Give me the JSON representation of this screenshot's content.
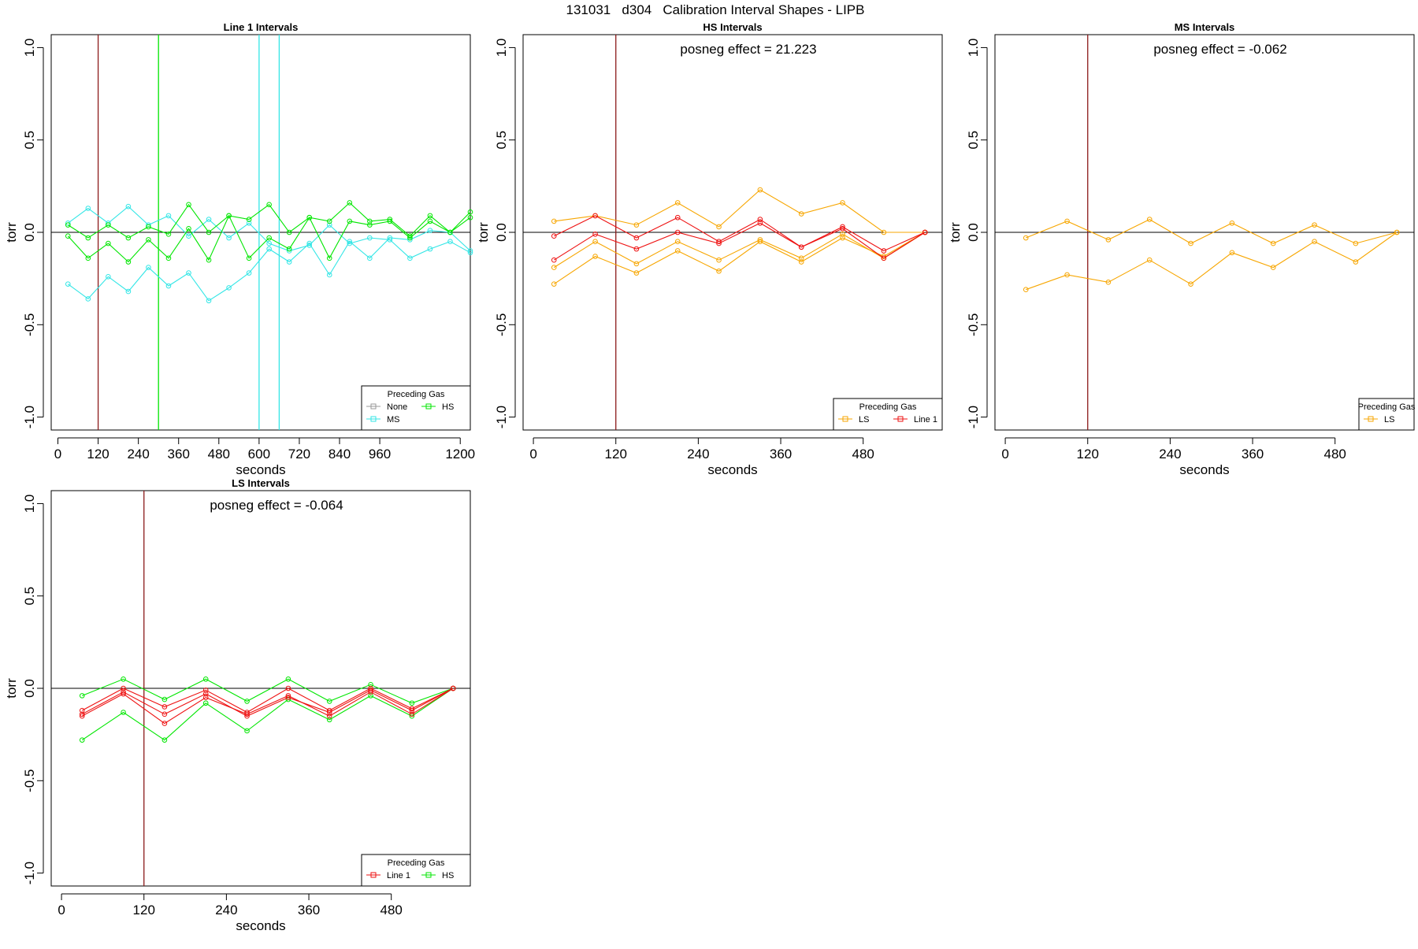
{
  "figure": {
    "title": "131031   d304   Calibration Interval Shapes - LIPB"
  },
  "colors": {
    "None": "#999999",
    "HS": "#00e600",
    "MS": "#33e6e6",
    "LS": "#f7a600",
    "Line 1": "#ee1111",
    "refline": "#8b1a1a",
    "axis": "#000000"
  },
  "chart_data": [
    {
      "type": "line",
      "title": "Line 1 Intervals",
      "xlabel": "seconds",
      "ylabel": "torr",
      "xlim": [
        -20,
        1230
      ],
      "ylim": [
        -1.07,
        1.07
      ],
      "xticks": [
        0,
        120,
        240,
        360,
        480,
        600,
        720,
        840,
        960,
        1200
      ],
      "yticks": [
        -1.0,
        -0.5,
        0.0,
        0.5,
        1.0
      ],
      "annotation": "",
      "hlines": [
        0
      ],
      "vlines": [
        {
          "x": 120,
          "color": "refline"
        },
        {
          "x": 300,
          "color": "HS"
        },
        {
          "x": 600,
          "color": "MS"
        },
        {
          "x": 660,
          "color": "MS"
        }
      ],
      "legend": {
        "title": "Preceding Gas",
        "position": "bottom-right",
        "ncol": 2,
        "entries": [
          "None",
          "HS",
          "MS"
        ]
      },
      "series": [
        {
          "name": "MS",
          "color": "MS",
          "x": [
            30,
            90,
            150,
            210,
            270,
            330,
            390,
            450,
            510,
            570,
            630,
            690,
            750,
            810,
            870,
            930,
            990,
            1050,
            1110,
            1170,
            1230
          ],
          "y": [
            0.05,
            0.13,
            0.05,
            0.14,
            0.04,
            0.09,
            -0.02,
            0.07,
            -0.03,
            0.05,
            -0.06,
            -0.1,
            -0.07,
            0.04,
            -0.06,
            -0.03,
            -0.04,
            -0.14,
            -0.09,
            -0.05,
            -0.11
          ]
        },
        {
          "name": "MS",
          "color": "MS",
          "x": [
            30,
            90,
            150,
            210,
            270,
            330,
            390,
            450,
            510,
            570,
            630,
            690,
            750,
            810,
            870,
            930,
            990,
            1050,
            1110,
            1170,
            1230
          ],
          "y": [
            -0.28,
            -0.36,
            -0.24,
            -0.32,
            -0.19,
            -0.29,
            -0.22,
            -0.37,
            -0.3,
            -0.22,
            -0.09,
            -0.16,
            -0.06,
            -0.23,
            -0.05,
            -0.14,
            -0.03,
            -0.04,
            0.01,
            0.0,
            -0.1
          ]
        },
        {
          "name": "HS",
          "color": "HS",
          "x": [
            30,
            90,
            150,
            210,
            270,
            330,
            390,
            450,
            510,
            570,
            630,
            690,
            750,
            810,
            870,
            930,
            990,
            1050,
            1110,
            1170,
            1230
          ],
          "y": [
            0.04,
            -0.03,
            0.04,
            -0.03,
            0.03,
            -0.01,
            0.15,
            0.0,
            0.09,
            0.07,
            0.15,
            0.0,
            0.08,
            0.06,
            0.16,
            0.06,
            0.07,
            -0.02,
            0.09,
            0.0,
            0.11
          ]
        },
        {
          "name": "HS",
          "color": "HS",
          "x": [
            30,
            90,
            150,
            210,
            270,
            330,
            390,
            450,
            510,
            570,
            630,
            690,
            750,
            810,
            870,
            930,
            990,
            1050,
            1110,
            1170,
            1230
          ],
          "y": [
            -0.02,
            -0.14,
            -0.06,
            -0.16,
            -0.04,
            -0.14,
            0.02,
            -0.15,
            0.09,
            -0.14,
            -0.03,
            -0.09,
            0.08,
            -0.14,
            0.06,
            0.04,
            0.06,
            -0.03,
            0.06,
            0.0,
            0.08
          ]
        }
      ]
    },
    {
      "type": "line",
      "title": "HS Intervals",
      "xlabel": "seconds",
      "ylabel": "torr",
      "xlim": [
        -15,
        595
      ],
      "ylim": [
        -1.07,
        1.07
      ],
      "xticks": [
        0,
        120,
        240,
        360,
        480
      ],
      "yticks": [
        -1.0,
        -0.5,
        0.0,
        0.5,
        1.0
      ],
      "annotation": "posneg effect = 21.223",
      "hlines": [
        0
      ],
      "vlines": [
        {
          "x": 120,
          "color": "refline"
        }
      ],
      "legend": {
        "title": "Preceding Gas",
        "position": "bottom-right",
        "ncol": 2,
        "entries": [
          "LS",
          "Line 1"
        ]
      },
      "series": [
        {
          "name": "LS",
          "color": "LS",
          "x": [
            30,
            90,
            150,
            210,
            270,
            330,
            390,
            450,
            510,
            570
          ],
          "y": [
            0.06,
            0.09,
            0.04,
            0.16,
            0.03,
            0.23,
            0.1,
            0.16,
            0.0,
            0.0
          ]
        },
        {
          "name": "LS",
          "color": "LS",
          "x": [
            30,
            90,
            150,
            210,
            270,
            330,
            390,
            450,
            510,
            570
          ],
          "y": [
            -0.19,
            -0.05,
            -0.17,
            -0.05,
            -0.15,
            -0.04,
            -0.14,
            -0.01,
            -0.14,
            0.0
          ]
        },
        {
          "name": "LS",
          "color": "LS",
          "x": [
            30,
            90,
            150,
            210,
            270,
            330,
            390,
            450,
            510,
            570
          ],
          "y": [
            -0.28,
            -0.13,
            -0.22,
            -0.1,
            -0.21,
            -0.05,
            -0.16,
            -0.03,
            -0.13,
            0.0
          ]
        },
        {
          "name": "Line 1",
          "color": "Line 1",
          "x": [
            30,
            90,
            150,
            210,
            270,
            330,
            390,
            450,
            510,
            570
          ],
          "y": [
            -0.02,
            0.09,
            -0.03,
            0.08,
            -0.05,
            0.07,
            -0.08,
            0.03,
            -0.1,
            0.0
          ]
        },
        {
          "name": "Line 1",
          "color": "Line 1",
          "x": [
            30,
            90,
            150,
            210,
            270,
            330,
            390,
            450,
            510,
            570
          ],
          "y": [
            -0.15,
            -0.01,
            -0.09,
            0.0,
            -0.06,
            0.05,
            -0.08,
            0.02,
            -0.14,
            0.0
          ]
        }
      ]
    },
    {
      "type": "line",
      "title": "MS Intervals",
      "xlabel": "seconds",
      "ylabel": "torr",
      "xlim": [
        -15,
        595
      ],
      "ylim": [
        -1.07,
        1.07
      ],
      "xticks": [
        0,
        120,
        240,
        360,
        480
      ],
      "yticks": [
        -1.0,
        -0.5,
        0.0,
        0.5,
        1.0
      ],
      "annotation": "posneg effect = -0.062",
      "hlines": [
        0
      ],
      "vlines": [
        {
          "x": 120,
          "color": "refline"
        }
      ],
      "legend": {
        "title": "Preceding Gas",
        "position": "bottom-right",
        "ncol": 1,
        "entries": [
          "LS"
        ]
      },
      "series": [
        {
          "name": "LS",
          "color": "LS",
          "x": [
            30,
            90,
            150,
            210,
            270,
            330,
            390,
            450,
            510,
            570
          ],
          "y": [
            -0.03,
            0.06,
            -0.04,
            0.07,
            -0.06,
            0.05,
            -0.06,
            0.04,
            -0.06,
            0.0
          ]
        },
        {
          "name": "LS",
          "color": "LS",
          "x": [
            30,
            90,
            150,
            210,
            270,
            330,
            390,
            450,
            510,
            570
          ],
          "y": [
            -0.31,
            -0.23,
            -0.27,
            -0.15,
            -0.28,
            -0.11,
            -0.19,
            -0.05,
            -0.16,
            0.0
          ]
        }
      ]
    },
    {
      "type": "line",
      "title": "LS Intervals",
      "xlabel": "seconds",
      "ylabel": "torr",
      "xlim": [
        -15,
        595
      ],
      "ylim": [
        -1.07,
        1.07
      ],
      "xticks": [
        0,
        120,
        240,
        360,
        480
      ],
      "yticks": [
        -1.0,
        -0.5,
        0.0,
        0.5,
        1.0
      ],
      "annotation": "posneg effect = -0.064",
      "hlines": [
        0
      ],
      "vlines": [
        {
          "x": 120,
          "color": "refline"
        }
      ],
      "legend": {
        "title": "Preceding Gas",
        "position": "bottom-right",
        "ncol": 2,
        "entries": [
          "Line 1",
          "HS"
        ]
      },
      "series": [
        {
          "name": "HS",
          "color": "HS",
          "x": [
            30,
            90,
            150,
            210,
            270,
            330,
            390,
            450,
            510,
            570
          ],
          "y": [
            -0.04,
            0.05,
            -0.06,
            0.05,
            -0.07,
            0.05,
            -0.07,
            0.02,
            -0.08,
            0.0
          ]
        },
        {
          "name": "HS",
          "color": "HS",
          "x": [
            30,
            90,
            150,
            210,
            270,
            330,
            390,
            450,
            510,
            570
          ],
          "y": [
            -0.28,
            -0.13,
            -0.28,
            -0.08,
            -0.23,
            -0.06,
            -0.17,
            -0.04,
            -0.15,
            0.0
          ]
        },
        {
          "name": "Line 1",
          "color": "Line 1",
          "x": [
            30,
            90,
            150,
            210,
            270,
            330,
            390,
            450,
            510,
            570
          ],
          "y": [
            -0.12,
            0.0,
            -0.1,
            -0.01,
            -0.13,
            0.0,
            -0.12,
            0.0,
            -0.11,
            0.0
          ]
        },
        {
          "name": "Line 1",
          "color": "Line 1",
          "x": [
            30,
            90,
            150,
            210,
            270,
            330,
            390,
            450,
            510,
            570
          ],
          "y": [
            -0.14,
            -0.02,
            -0.14,
            -0.03,
            -0.15,
            -0.05,
            -0.13,
            -0.01,
            -0.12,
            0.0
          ]
        },
        {
          "name": "Line 1",
          "color": "Line 1",
          "x": [
            30,
            90,
            150,
            210,
            270,
            330,
            390,
            450,
            510,
            570
          ],
          "y": [
            -0.15,
            -0.03,
            -0.19,
            -0.05,
            -0.14,
            -0.04,
            -0.15,
            -0.02,
            -0.14,
            0.0
          ]
        }
      ]
    }
  ]
}
